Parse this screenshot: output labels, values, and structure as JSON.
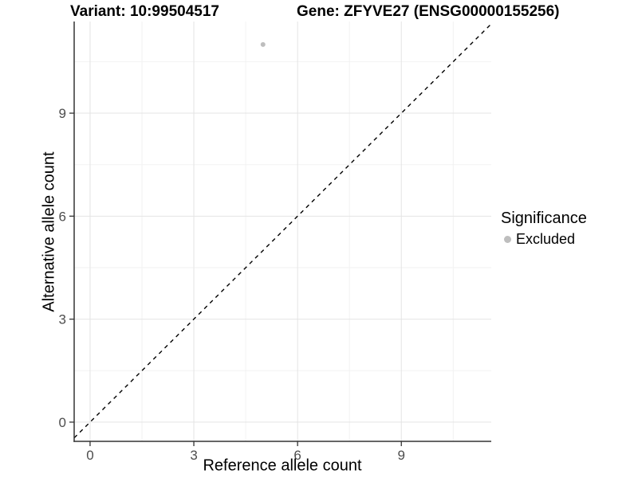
{
  "header": {
    "variant_title": "Variant: 10:99504517",
    "gene_title": "Gene: ZFYVE27 (ENSG00000155256)"
  },
  "axes": {
    "x_label": "Reference allele count",
    "y_label": "Alternative allele count"
  },
  "legend": {
    "title": "Significance",
    "items": [
      {
        "label": "Excluded",
        "color": "#bebebe"
      }
    ]
  },
  "chart_data": {
    "type": "scatter",
    "title": "Variant: 10:99504517   Gene: ZFYVE27 (ENSG00000155256)",
    "xlabel": "Reference allele count",
    "ylabel": "Alternative allele count",
    "xlim": [
      -0.46,
      11.6
    ],
    "ylim": [
      -0.56,
      11.67
    ],
    "x_ticks": [
      0,
      3,
      6,
      9
    ],
    "y_ticks": [
      0,
      3,
      6,
      9
    ],
    "x_minor_gridlines": [
      1.5,
      4.5,
      7.5,
      10.5
    ],
    "y_minor_gridlines": [
      1.5,
      4.5,
      7.5,
      10.5
    ],
    "grid": true,
    "legend_position": "right",
    "series": [
      {
        "name": "Excluded",
        "color": "#bebebe",
        "points": [
          {
            "x": 5,
            "y": 11
          }
        ]
      }
    ],
    "reference_line": {
      "type": "identity",
      "slope": 1,
      "intercept": 0,
      "style": "dashed",
      "color": "#000000"
    },
    "colors": {
      "grid_major": "#e4e4e4",
      "grid_minor": "#f2f2f2",
      "axis_line": "#333333",
      "tick_mark": "#333333",
      "tick_label": "#4d4d4d",
      "point": "#bebebe"
    }
  }
}
